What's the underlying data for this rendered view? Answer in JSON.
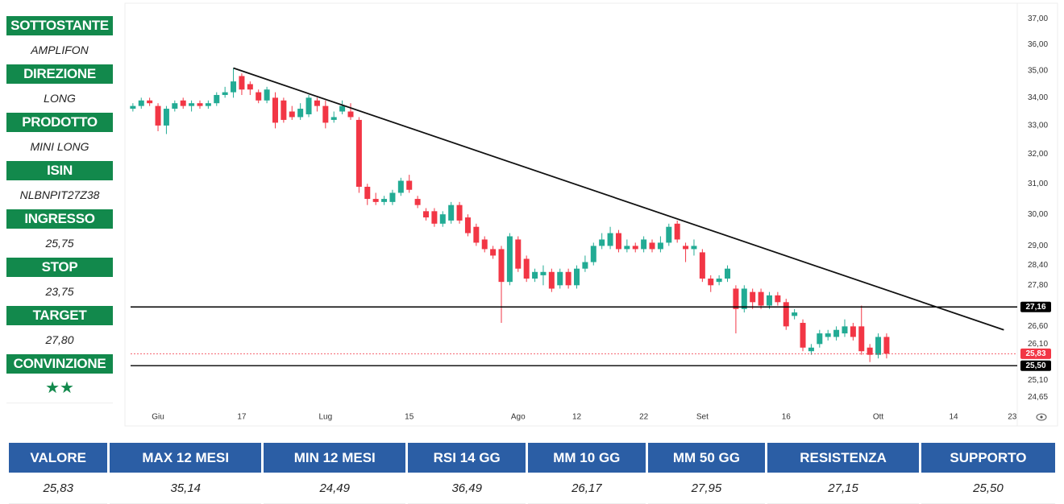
{
  "sidebar": [
    {
      "label": "SOTTOSTANTE",
      "value": "AMPLIFON"
    },
    {
      "label": "DIREZIONE",
      "value": "LONG"
    },
    {
      "label": "PRODOTTO",
      "value": "MINI LONG"
    },
    {
      "label": "ISIN",
      "value": "NLBNPIT27Z38"
    },
    {
      "label": "INGRESSO",
      "value": "25,75"
    },
    {
      "label": "STOP",
      "value": "23,75"
    },
    {
      "label": "TARGET",
      "value": "27,80"
    },
    {
      "label": "CONVINZIONE",
      "value": "★★"
    }
  ],
  "chart_data": {
    "type": "candlestick",
    "log_scale": true,
    "up_color": "#22ab94",
    "down_color": "#f23645",
    "xlim": [
      -3.95,
      102.6
    ],
    "xticks": [
      {
        "value": 0,
        "label": "Giu"
      },
      {
        "value": 10,
        "label": "17"
      },
      {
        "value": 20,
        "label": "Lug"
      },
      {
        "value": 30,
        "label": "15"
      },
      {
        "value": 43,
        "label": "Ago"
      },
      {
        "value": 50,
        "label": "12"
      },
      {
        "value": 58,
        "label": "22"
      },
      {
        "value": 65,
        "label": "Set"
      },
      {
        "value": 75,
        "label": "16"
      },
      {
        "value": 86,
        "label": "Ott"
      },
      {
        "value": 95,
        "label": "14"
      },
      {
        "value": 102,
        "label": "23"
      }
    ],
    "ylim": [
      24.3,
      37.5
    ],
    "yticks": [
      {
        "value": 24.65,
        "label": "24,65"
      },
      {
        "value": 25.1,
        "label": "25,10"
      },
      {
        "value": 26.1,
        "label": "26,10"
      },
      {
        "value": 26.6,
        "label": "26,60"
      },
      {
        "value": 27.8,
        "label": "27,80"
      },
      {
        "value": 28.4,
        "label": "28,40"
      },
      {
        "value": 29,
        "label": "29,00"
      },
      {
        "value": 30,
        "label": "30,00"
      },
      {
        "value": 31,
        "label": "31,00"
      },
      {
        "value": 32,
        "label": "32,00"
      },
      {
        "value": 33,
        "label": "33,00"
      },
      {
        "value": 34,
        "label": "34,00"
      },
      {
        "value": 35,
        "label": "35,00"
      },
      {
        "value": 36,
        "label": "36,00"
      },
      {
        "value": 37,
        "label": "37,00"
      }
    ],
    "x": [
      -3,
      -2,
      -1,
      0,
      1,
      2,
      3,
      4,
      5,
      6,
      7,
      8,
      9,
      10,
      11,
      12,
      13,
      14,
      15,
      16,
      17,
      18,
      19,
      20,
      21,
      22,
      23,
      24,
      25,
      26,
      27,
      28,
      29,
      30,
      31,
      32,
      33,
      34,
      35,
      36,
      37,
      38,
      39,
      40,
      41,
      42,
      43,
      44,
      45,
      46,
      47,
      48,
      49,
      50,
      51,
      52,
      53,
      54,
      55,
      56,
      57,
      58,
      59,
      60,
      61,
      62,
      63,
      64,
      65,
      66,
      67,
      68,
      69,
      70,
      71,
      72,
      73,
      74,
      75,
      76,
      77,
      78,
      79,
      80,
      81,
      82,
      83,
      84,
      85,
      86,
      87
    ],
    "open": [
      33.6,
      33.7,
      33.9,
      33.7,
      33.0,
      33.6,
      33.9,
      33.7,
      33.8,
      33.7,
      33.8,
      34.1,
      34.2,
      34.8,
      34.5,
      34.2,
      33.9,
      34.0,
      33.9,
      33.5,
      33.3,
      33.4,
      33.9,
      33.7,
      33.2,
      33.5,
      33.5,
      33.2,
      30.9,
      30.5,
      30.4,
      30.4,
      30.7,
      31.1,
      30.5,
      30.1,
      30.1,
      29.7,
      29.8,
      30.3,
      29.9,
      29.6,
      29.2,
      28.9,
      28.9,
      27.9,
      29.2,
      28.6,
      28.0,
      28.1,
      28.2,
      27.8,
      28.2,
      27.8,
      28.3,
      28.5,
      29.0,
      29.0,
      29.4,
      28.9,
      29.0,
      28.9,
      29.1,
      28.9,
      29.1,
      29.7,
      29.0,
      28.9,
      28.8,
      28.0,
      27.9,
      28.0,
      27.7,
      27.1,
      27.6,
      27.6,
      27.2,
      27.5,
      27.3,
      26.9,
      26.7,
      25.9,
      26.1,
      26.3,
      26.3,
      26.4,
      26.6,
      26.6,
      26.0,
      25.8,
      26.3
    ],
    "high": [
      33.8,
      34.0,
      34.0,
      33.8,
      33.7,
      33.9,
      34.0,
      33.9,
      33.9,
      33.9,
      34.2,
      34.4,
      35.1,
      34.9,
      34.6,
      34.3,
      34.4,
      34.2,
      34.0,
      33.7,
      33.8,
      34.1,
      34.0,
      33.9,
      33.5,
      33.9,
      33.8,
      33.3,
      31.0,
      30.7,
      30.6,
      30.8,
      31.2,
      31.3,
      30.6,
      30.2,
      30.2,
      30.1,
      30.4,
      30.4,
      30.0,
      29.7,
      29.3,
      29.0,
      29.0,
      29.4,
      29.3,
      28.7,
      28.3,
      28.4,
      28.3,
      28.3,
      28.3,
      28.4,
      28.7,
      29.1,
      29.4,
      29.6,
      29.5,
      29.2,
      29.1,
      29.3,
      29.2,
      29.3,
      29.7,
      29.8,
      29.1,
      29.2,
      28.9,
      28.1,
      28.1,
      28.4,
      27.8,
      27.8,
      27.7,
      27.7,
      27.6,
      27.6,
      27.4,
      27.1,
      26.8,
      26.1,
      26.5,
      26.5,
      26.6,
      26.8,
      26.7,
      27.2,
      26.1,
      26.4,
      26.4
    ],
    "low": [
      33.5,
      33.6,
      33.7,
      32.8,
      32.7,
      33.5,
      33.6,
      33.5,
      33.6,
      33.6,
      33.7,
      34.0,
      34.0,
      34.1,
      34.1,
      33.8,
      33.8,
      32.9,
      33.1,
      33.2,
      33.2,
      33.3,
      33.5,
      32.9,
      33.1,
      33.4,
      33.2,
      30.7,
      30.3,
      30.3,
      30.3,
      30.3,
      30.6,
      30.7,
      30.2,
      29.8,
      29.6,
      29.6,
      29.7,
      29.7,
      29.3,
      29.0,
      28.8,
      28.6,
      26.7,
      27.8,
      28.2,
      27.9,
      27.9,
      27.8,
      27.6,
      27.7,
      27.7,
      27.7,
      28.2,
      28.4,
      28.9,
      28.9,
      28.8,
      28.8,
      28.8,
      28.8,
      28.8,
      28.8,
      29.0,
      29.1,
      28.5,
      28.7,
      27.9,
      27.6,
      27.8,
      27.9,
      26.4,
      27.0,
      27.1,
      27.1,
      27.1,
      27.2,
      26.5,
      26.8,
      25.9,
      25.8,
      26.0,
      26.2,
      26.2,
      26.3,
      26.2,
      25.8,
      25.6,
      25.7,
      25.7
    ],
    "close": [
      33.7,
      33.9,
      33.8,
      33.0,
      33.6,
      33.8,
      33.7,
      33.8,
      33.7,
      33.8,
      34.1,
      34.2,
      34.6,
      34.3,
      34.3,
      33.9,
      34.3,
      33.1,
      33.2,
      33.3,
      33.6,
      34.0,
      33.7,
      33.1,
      33.3,
      33.7,
      33.3,
      30.9,
      30.5,
      30.4,
      30.5,
      30.7,
      31.1,
      30.8,
      30.3,
      29.9,
      29.7,
      30.0,
      30.3,
      29.8,
      29.4,
      29.1,
      28.9,
      28.7,
      27.9,
      29.3,
      28.3,
      28.0,
      28.2,
      28.2,
      27.7,
      28.2,
      27.8,
      28.3,
      28.5,
      29.0,
      29.2,
      29.4,
      28.9,
      29.0,
      28.9,
      29.2,
      28.9,
      29.1,
      29.6,
      29.2,
      28.9,
      29.0,
      28.0,
      27.8,
      28.0,
      28.3,
      27.1,
      27.7,
      27.3,
      27.2,
      27.5,
      27.3,
      26.6,
      27.0,
      26.0,
      26.0,
      26.4,
      26.4,
      26.5,
      26.6,
      26.3,
      25.9,
      25.8,
      26.3,
      25.83
    ],
    "hlines": [
      {
        "value": 27.16,
        "label": "27,16",
        "color": "#000000",
        "dash": false
      },
      {
        "value": 25.83,
        "label": "25,83",
        "color": "#f23645",
        "dash": true
      },
      {
        "value": 25.5,
        "label": "25,50",
        "color": "#000000",
        "dash": false
      }
    ],
    "trendline": {
      "x": [
        9,
        101
      ],
      "y": [
        35.1,
        26.5
      ]
    }
  },
  "table": {
    "headers": [
      "VALORE",
      "MAX 12 MESI",
      "MIN 12 MESI",
      "RSI 14 GG",
      "MM 10 GG",
      "MM 50 GG",
      "RESISTENZA",
      "SUPPORTO"
    ],
    "row": [
      "25,83",
      "35,14",
      "24,49",
      "36,49",
      "26,17",
      "27,95",
      "27,15",
      "25,50"
    ]
  }
}
